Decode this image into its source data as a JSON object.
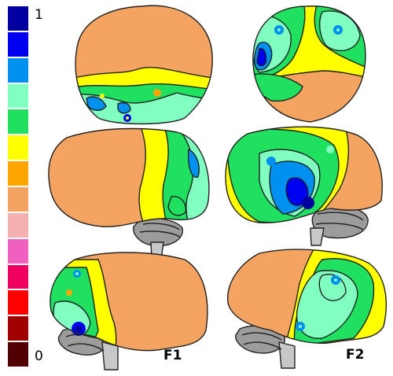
{
  "colorbar": {
    "max_label": "1",
    "min_label": "0",
    "colors_top_to_bottom": [
      "#0000a0",
      "#0000f0",
      "#0090f0",
      "#80ffc0",
      "#20e060",
      "#ffff00",
      "#ffa500",
      "#f4a460",
      "#f4b0b0",
      "#f060c0",
      "#f00060",
      "#ff0000",
      "#a00000",
      "#500000"
    ]
  },
  "panels": {
    "f1": {
      "label": "F1"
    },
    "f2": {
      "label": "F2"
    }
  },
  "palette": {
    "outline": "#222222",
    "cerebellum": "#9c9c9c",
    "stem": "#c8c8c8"
  }
}
